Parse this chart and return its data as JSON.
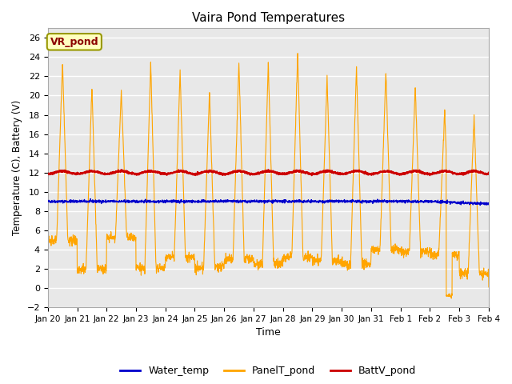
{
  "title": "Vaira Pond Temperatures",
  "xlabel": "Time",
  "ylabel": "Temperature (C), Battery (V)",
  "ylim": [
    -2,
    27
  ],
  "yticks": [
    -2,
    0,
    2,
    4,
    6,
    8,
    10,
    12,
    14,
    16,
    18,
    20,
    22,
    24,
    26
  ],
  "xtick_labels": [
    "Jan 20",
    "Jan 21",
    "Jan 22",
    "Jan 23",
    "Jan 24",
    "Jan 25",
    "Jan 26",
    "Jan 27",
    "Jan 28",
    "Jan 29",
    "Jan 30",
    "Jan 31",
    "Feb 1",
    "Feb 2",
    "Feb 3",
    "Feb 4"
  ],
  "water_temp_base": 9.0,
  "batt_base": 12.0,
  "panel_day_peaks": [
    23.5,
    21.0,
    20.5,
    23.5,
    22.5,
    20.5,
    23.5,
    23.5,
    24.5,
    22.0,
    23.0,
    22.5,
    21.0,
    18.5,
    17.8
  ],
  "panel_night_mins": [
    5.0,
    2.0,
    5.2,
    2.1,
    3.2,
    2.2,
    3.0,
    2.5,
    3.2,
    2.8,
    2.5,
    4.0,
    3.8,
    3.5,
    1.5
  ],
  "colors": {
    "water": "#0000cc",
    "panel": "#FFA500",
    "batt": "#cc0000",
    "fig_bg": "#ffffff",
    "plot_bg": "#e8e8e8"
  },
  "legend_labels": [
    "Water_temp",
    "PanelT_pond",
    "BattV_pond"
  ],
  "annotation_text": "VR_pond"
}
